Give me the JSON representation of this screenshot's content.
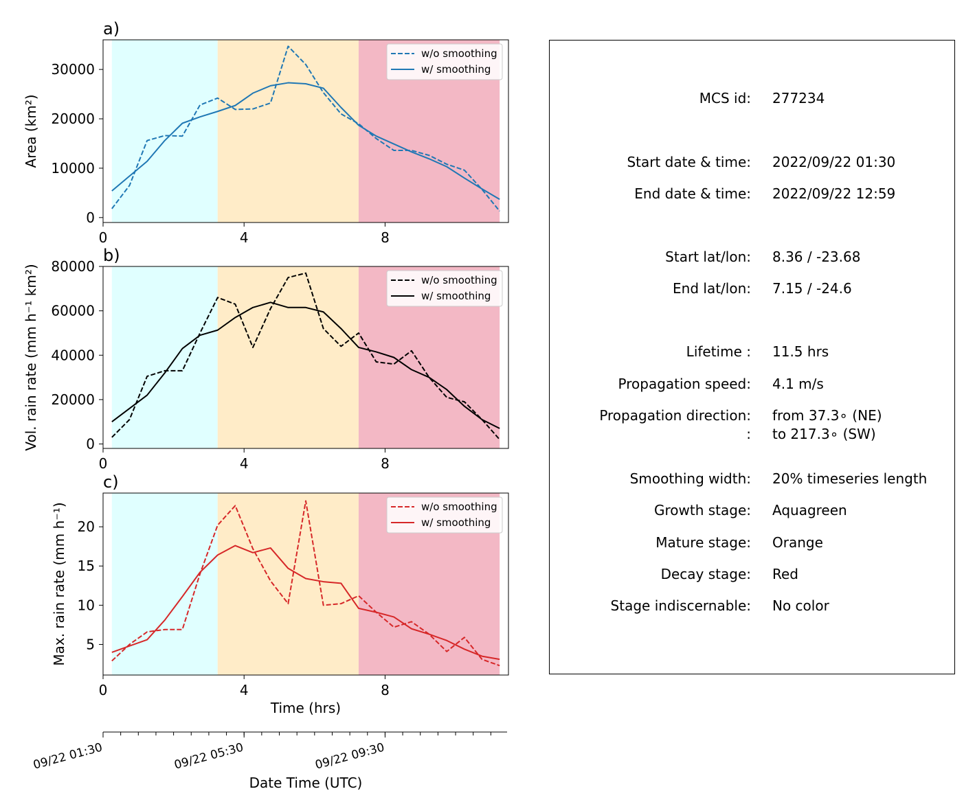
{
  "stages": {
    "growth": {
      "start": 0.25,
      "end": 3.25,
      "color": "#e0ffff"
    },
    "mature": {
      "start": 3.25,
      "end": 7.25,
      "color": "#ffecc8"
    },
    "decay": {
      "start": 7.25,
      "end": 11.25,
      "color": "#f3b8c5"
    }
  },
  "chart_data": [
    {
      "type": "line",
      "panel_label": "a)",
      "ylabel": "Area  (km²)",
      "xlabel": "",
      "xlim": [
        0,
        11.5
      ],
      "ylim": [
        -1000,
        36000
      ],
      "xticks": [
        0,
        4,
        8
      ],
      "yticks": [
        0,
        10000,
        20000,
        30000
      ],
      "color": "#1f77b4",
      "x": [
        0.25,
        0.75,
        1.25,
        1.75,
        2.25,
        2.75,
        3.25,
        3.75,
        4.25,
        4.75,
        5.25,
        5.75,
        6.25,
        6.75,
        7.25,
        7.75,
        8.25,
        8.75,
        9.25,
        9.75,
        10.25,
        10.75,
        11.25
      ],
      "series": [
        {
          "name": "w/o smoothing",
          "style": "dashed",
          "values": [
            1800,
            6500,
            15600,
            16600,
            16500,
            22800,
            24200,
            21900,
            22000,
            23200,
            34700,
            31000,
            25300,
            21000,
            19000,
            16000,
            13600,
            13600,
            12600,
            10800,
            9600,
            5700,
            1300
          ]
        },
        {
          "name": "w/ smoothing",
          "style": "solid",
          "values": [
            5400,
            8400,
            11400,
            15600,
            19100,
            20400,
            21500,
            22700,
            25200,
            26700,
            27300,
            27100,
            26200,
            22300,
            18700,
            16500,
            14900,
            13300,
            11900,
            10300,
            8000,
            5800,
            3700
          ]
        }
      ]
    },
    {
      "type": "line",
      "panel_label": "b)",
      "ylabel": "Vol. rain rate (mm h⁻¹ km²)",
      "xlabel": "",
      "xlim": [
        0,
        11.5
      ],
      "ylim": [
        -2000,
        80000
      ],
      "xticks": [
        0,
        4,
        8
      ],
      "yticks": [
        0,
        20000,
        40000,
        60000,
        80000
      ],
      "color": "#000000",
      "x": [
        0.25,
        0.75,
        1.25,
        1.75,
        2.25,
        2.75,
        3.25,
        3.75,
        4.25,
        4.75,
        5.25,
        5.75,
        6.25,
        6.75,
        7.25,
        7.75,
        8.25,
        8.75,
        9.25,
        9.75,
        10.25,
        10.75,
        11.25
      ],
      "series": [
        {
          "name": "w/o smoothing",
          "style": "dashed",
          "values": [
            3000,
            11000,
            30500,
            33000,
            33000,
            50000,
            66000,
            63000,
            43500,
            61000,
            75000,
            77000,
            52000,
            44000,
            50000,
            37000,
            36000,
            42000,
            30000,
            21000,
            19000,
            11000,
            2000
          ]
        },
        {
          "name": "w/ smoothing",
          "style": "solid",
          "values": [
            10000,
            16000,
            22000,
            32000,
            43000,
            49000,
            51300,
            57000,
            61500,
            63800,
            61500,
            61500,
            59500,
            52000,
            43500,
            41500,
            39000,
            33500,
            30000,
            24500,
            17000,
            11000,
            7000
          ]
        }
      ]
    },
    {
      "type": "line",
      "panel_label": "c)",
      "ylabel": "Max. rain rate  (mm h⁻¹)",
      "xlabel": "Time (hrs)",
      "xlim": [
        0,
        11.5
      ],
      "ylim": [
        1.1,
        24.3
      ],
      "xticks": [
        0,
        4,
        8
      ],
      "yticks": [
        5,
        10,
        15,
        20
      ],
      "color": "#d62728",
      "x": [
        0.25,
        0.75,
        1.25,
        1.75,
        2.25,
        2.75,
        3.25,
        3.75,
        4.25,
        4.75,
        5.25,
        5.75,
        6.25,
        6.75,
        7.25,
        7.75,
        8.25,
        8.75,
        9.25,
        9.75,
        10.25,
        10.75,
        11.25
      ],
      "series": [
        {
          "name": "w/o smoothing",
          "style": "dashed",
          "values": [
            2.9,
            5.0,
            6.6,
            6.9,
            6.9,
            14.0,
            20.2,
            22.7,
            17.2,
            13.1,
            10.2,
            23.3,
            10.0,
            10.2,
            11.2,
            9.1,
            7.2,
            7.9,
            6.3,
            4.1,
            5.9,
            3.1,
            2.3
          ]
        },
        {
          "name": "w/ smoothing",
          "style": "solid",
          "values": [
            4.0,
            4.8,
            5.6,
            8.1,
            11.1,
            14.2,
            16.4,
            17.6,
            16.7,
            17.3,
            14.7,
            13.4,
            13.0,
            12.8,
            9.6,
            9.1,
            8.5,
            7.0,
            6.3,
            5.5,
            4.4,
            3.5,
            3.1
          ]
        }
      ]
    }
  ],
  "secondary_axis": {
    "label": "Date Time (UTC)",
    "tick_labels": [
      {
        "text": "09/22 01:30",
        "hour": 0
      },
      {
        "text": "09/22 05:30",
        "hour": 4
      },
      {
        "text": "09/22 09:30",
        "hour": 8
      }
    ],
    "minor_ticks_every_hours": 0.5
  },
  "info_panel": {
    "rows": [
      {
        "label": "MCS id:",
        "value": "277234"
      },
      {
        "label": "Start date & time:",
        "value": "2022/09/22 01:30"
      },
      {
        "label": "End date & time:",
        "value": "2022/09/22 12:59"
      },
      {
        "label": "Start lat/lon:",
        "value": "8.36 / -23.68"
      },
      {
        "label": "End lat/lon:",
        "value": "7.15 / -24.6"
      },
      {
        "label": "Lifetime :",
        "value": "11.5 hrs"
      },
      {
        "label": "Propagation speed:",
        "value": "4.1 m/s"
      },
      {
        "label": "Propagation direction:",
        "value": "from  37.3∘ (NE)"
      },
      {
        "label": ":",
        "value": "to   217.3∘ (SW)"
      },
      {
        "label": "Smoothing width:",
        "value": "20% timeseries length"
      },
      {
        "label": "Growth stage:",
        "value": "Aquagreen"
      },
      {
        "label": "Mature stage:",
        "value": "Orange"
      },
      {
        "label": "Decay stage:",
        "value": "Red"
      },
      {
        "label": "Stage indiscernable:",
        "value": "No color"
      }
    ]
  }
}
